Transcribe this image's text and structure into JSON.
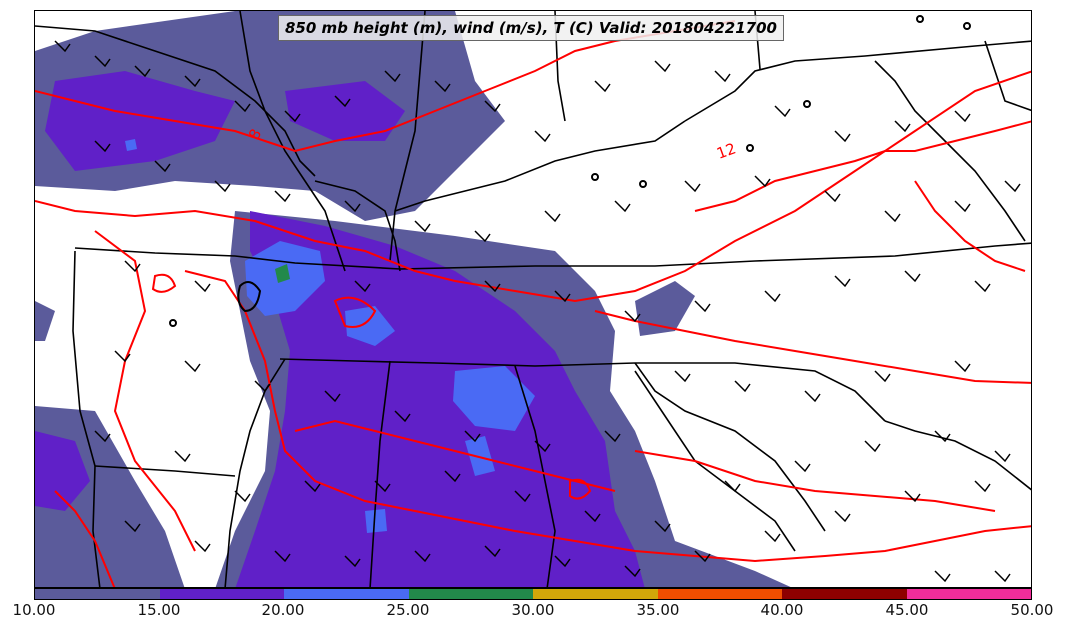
{
  "title": "850 mb height (m), wind (m/s), T (C) Valid: 201804221700",
  "contour_labels": [
    "8",
    "12"
  ],
  "colorbar": {
    "ticks": [
      "10.00",
      "15.00",
      "20.00",
      "25.00",
      "30.00",
      "35.00",
      "40.00",
      "45.00",
      "50.00"
    ],
    "colors": [
      "#5b5b9b",
      "#6020c8",
      "#4a6af4",
      "#22894a",
      "#d1a70a",
      "#f04e00",
      "#8e0000",
      "#f02d9a"
    ]
  },
  "colors": {
    "temperature_contour": "#ff0000",
    "boundaries": "#000000",
    "wind_barb": "#000000"
  }
}
